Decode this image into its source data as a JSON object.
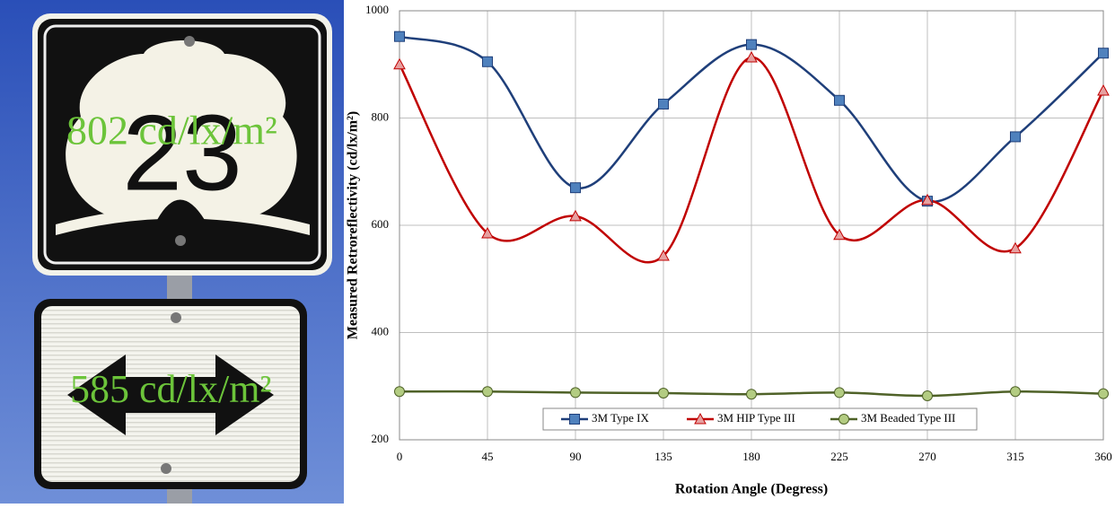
{
  "photo": {
    "sign_number": "23",
    "top_reading": "802 cd/lx/m²",
    "bottom_reading": "585 cd/lx/m²"
  },
  "chart_data": {
    "type": "line",
    "x_label": "Rotation Angle (Degress)",
    "y_label": "Measured Retroreflectivity (cd/lx/m²)",
    "x": [
      0,
      45,
      90,
      135,
      180,
      225,
      270,
      315,
      360
    ],
    "series": [
      {
        "name": "3M Type IX",
        "color": "#1f3f7a",
        "marker_color": "#4f81bd",
        "marker": "square",
        "values": [
          952,
          905,
          670,
          826,
          937,
          833,
          645,
          765,
          921
        ]
      },
      {
        "name": "3M HIP  Type III",
        "color": "#c00000",
        "marker_color": "#e6a0a0",
        "marker": "triangle",
        "values": [
          900,
          585,
          617,
          543,
          913,
          582,
          647,
          557,
          851
        ]
      },
      {
        "name": "3M Beaded Type III",
        "color": "#4f6228",
        "marker_color": "#b3cc82",
        "marker": "circle",
        "values": [
          290,
          290,
          288,
          287,
          285,
          288,
          282,
          290,
          286
        ]
      }
    ],
    "xlim": [
      0,
      360
    ],
    "xticks": [
      0,
      45,
      90,
      135,
      180,
      225,
      270,
      315,
      360
    ],
    "ylim": [
      200,
      1000
    ],
    "yticks": [
      200,
      400,
      600,
      800,
      1000
    ],
    "grid": true,
    "legend": "bottom",
    "smooth": true
  }
}
